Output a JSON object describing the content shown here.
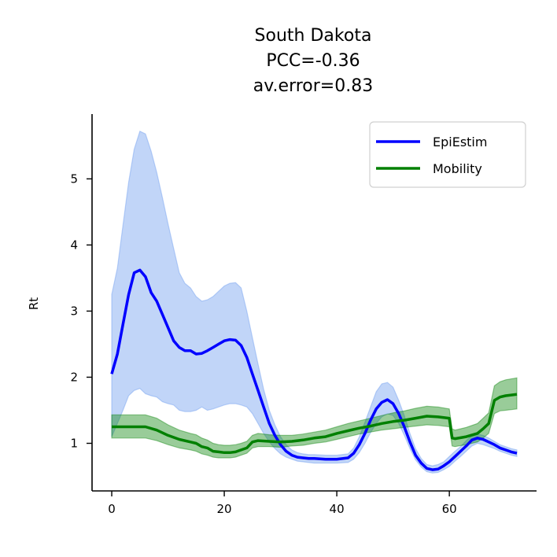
{
  "chart_data": {
    "type": "line",
    "title_lines": [
      "South Dakota",
      "PCC=-0.36",
      "av.error=0.83"
    ],
    "xlabel": "",
    "ylabel": "Rt",
    "xlim": [
      -3.5,
      75.5
    ],
    "ylim": [
      0.28,
      5.98
    ],
    "xticks": [
      0,
      20,
      40,
      60
    ],
    "yticks": [
      1,
      2,
      3,
      4,
      5
    ],
    "grid": false,
    "legend_position": "top-right",
    "series": [
      {
        "name": "EpiEstim",
        "color": "#0000ff",
        "band_color": "#6495ed",
        "x": [
          0,
          1,
          2,
          3,
          4,
          5,
          6,
          7,
          8,
          9,
          10,
          11,
          12,
          13,
          14,
          15,
          16,
          17,
          18,
          19,
          20,
          21,
          22,
          23,
          24,
          25,
          26,
          27,
          28,
          29,
          30,
          31,
          32,
          33,
          34,
          35,
          36,
          38,
          40,
          42,
          43,
          44,
          45,
          46,
          47,
          48,
          49,
          50,
          51,
          52,
          53,
          54,
          55,
          56,
          57,
          58,
          59,
          60,
          61,
          62,
          63,
          64,
          65,
          66,
          67,
          68,
          69,
          70,
          71,
          72
        ],
        "values": [
          2.05,
          2.35,
          2.8,
          3.25,
          3.58,
          3.62,
          3.52,
          3.28,
          3.15,
          2.95,
          2.75,
          2.55,
          2.45,
          2.4,
          2.4,
          2.35,
          2.36,
          2.4,
          2.45,
          2.5,
          2.55,
          2.57,
          2.56,
          2.48,
          2.3,
          2.05,
          1.8,
          1.55,
          1.3,
          1.12,
          0.98,
          0.88,
          0.82,
          0.79,
          0.78,
          0.77,
          0.77,
          0.76,
          0.76,
          0.78,
          0.85,
          0.98,
          1.15,
          1.35,
          1.52,
          1.62,
          1.66,
          1.6,
          1.45,
          1.25,
          1.02,
          0.82,
          0.7,
          0.62,
          0.6,
          0.61,
          0.66,
          0.72,
          0.8,
          0.88,
          0.96,
          1.05,
          1.08,
          1.06,
          1.02,
          0.98,
          0.93,
          0.9,
          0.87,
          0.85
        ],
        "lower": [
          1.1,
          1.3,
          1.5,
          1.72,
          1.8,
          1.83,
          1.75,
          1.72,
          1.7,
          1.63,
          1.6,
          1.58,
          1.5,
          1.48,
          1.48,
          1.5,
          1.55,
          1.5,
          1.52,
          1.55,
          1.58,
          1.6,
          1.6,
          1.58,
          1.55,
          1.45,
          1.3,
          1.15,
          1.02,
          0.92,
          0.84,
          0.79,
          0.76,
          0.73,
          0.72,
          0.71,
          0.7,
          0.7,
          0.7,
          0.71,
          0.76,
          0.86,
          1.0,
          1.16,
          1.3,
          1.4,
          1.45,
          1.42,
          1.3,
          1.12,
          0.92,
          0.75,
          0.64,
          0.57,
          0.55,
          0.56,
          0.6,
          0.65,
          0.73,
          0.8,
          0.88,
          0.96,
          1.0,
          0.98,
          0.95,
          0.92,
          0.88,
          0.85,
          0.82,
          0.8
        ],
        "upper": [
          3.25,
          3.65,
          4.3,
          4.95,
          5.45,
          5.72,
          5.68,
          5.42,
          5.1,
          4.72,
          4.32,
          3.95,
          3.58,
          3.42,
          3.35,
          3.22,
          3.15,
          3.17,
          3.22,
          3.3,
          3.38,
          3.42,
          3.43,
          3.35,
          3.0,
          2.6,
          2.2,
          1.82,
          1.5,
          1.28,
          1.1,
          0.98,
          0.9,
          0.86,
          0.84,
          0.83,
          0.83,
          0.82,
          0.82,
          0.84,
          0.93,
          1.1,
          1.32,
          1.55,
          1.78,
          1.9,
          1.92,
          1.85,
          1.65,
          1.42,
          1.15,
          0.92,
          0.77,
          0.68,
          0.66,
          0.68,
          0.72,
          0.8,
          0.88,
          0.95,
          1.04,
          1.12,
          1.14,
          1.12,
          1.08,
          1.03,
          0.98,
          0.95,
          0.92,
          0.9
        ]
      },
      {
        "name": "Mobility",
        "color": "#008000",
        "band_color": "#008000",
        "x": [
          0,
          3,
          6,
          8,
          10,
          12,
          14,
          15,
          16,
          17,
          18,
          19,
          20,
          21,
          22,
          23,
          24,
          25,
          26,
          28,
          30,
          32,
          34,
          36,
          38,
          40,
          42,
          44,
          46,
          48,
          50,
          52,
          54,
          56,
          58,
          60,
          60.5,
          61,
          63,
          65,
          66,
          67,
          68,
          69,
          70,
          72
        ],
        "values": [
          1.25,
          1.25,
          1.25,
          1.2,
          1.12,
          1.06,
          1.02,
          1.0,
          0.95,
          0.93,
          0.88,
          0.87,
          0.86,
          0.86,
          0.87,
          0.9,
          0.93,
          1.02,
          1.04,
          1.03,
          1.02,
          1.03,
          1.05,
          1.08,
          1.1,
          1.15,
          1.19,
          1.23,
          1.26,
          1.3,
          1.33,
          1.35,
          1.38,
          1.41,
          1.4,
          1.38,
          1.08,
          1.07,
          1.1,
          1.15,
          1.22,
          1.3,
          1.65,
          1.7,
          1.72,
          1.74
        ],
        "lower": [
          1.08,
          1.08,
          1.08,
          1.04,
          0.98,
          0.93,
          0.9,
          0.88,
          0.84,
          0.82,
          0.79,
          0.78,
          0.78,
          0.78,
          0.79,
          0.82,
          0.85,
          0.93,
          0.95,
          0.95,
          0.94,
          0.96,
          0.97,
          1.0,
          1.02,
          1.06,
          1.1,
          1.14,
          1.17,
          1.2,
          1.22,
          1.24,
          1.26,
          1.28,
          1.27,
          1.25,
          0.96,
          0.95,
          0.98,
          1.02,
          1.08,
          1.15,
          1.45,
          1.49,
          1.5,
          1.52
        ],
        "upper": [
          1.43,
          1.43,
          1.43,
          1.38,
          1.28,
          1.2,
          1.15,
          1.13,
          1.08,
          1.05,
          1.0,
          0.98,
          0.97,
          0.97,
          0.98,
          1.0,
          1.03,
          1.12,
          1.15,
          1.13,
          1.12,
          1.12,
          1.14,
          1.17,
          1.2,
          1.25,
          1.3,
          1.34,
          1.38,
          1.42,
          1.46,
          1.49,
          1.53,
          1.56,
          1.55,
          1.52,
          1.22,
          1.2,
          1.24,
          1.3,
          1.38,
          1.46,
          1.87,
          1.93,
          1.96,
          1.99
        ]
      }
    ]
  }
}
